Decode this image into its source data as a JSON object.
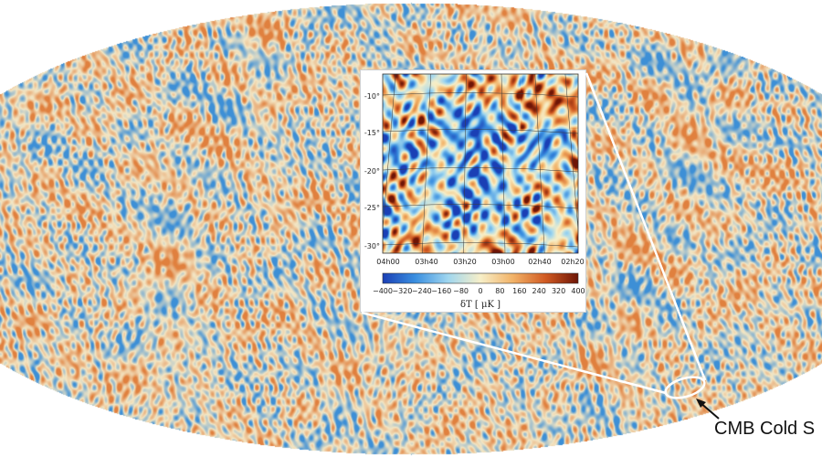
{
  "inset": {
    "y_ticks": [
      "-10°",
      "-15°",
      "-20°",
      "-25°",
      "-30°"
    ],
    "x_ticks": [
      "04h00",
      "03h40",
      "03h20",
      "03h00",
      "02h40",
      "02h20"
    ],
    "colorbar": {
      "tick_labels": [
        "−400",
        "−320",
        "−240",
        "−160",
        "−80",
        "0",
        "80",
        "160",
        "240",
        "320",
        "400"
      ],
      "label": "δT [ μK ]",
      "min": -400,
      "max": 400,
      "colors": [
        "#1a3fb5",
        "#3a8fe0",
        "#9fd6ef",
        "#f7efc8",
        "#f2b267",
        "#d15a22",
        "#6e1506"
      ]
    }
  },
  "annotation": {
    "label": "CMB Cold S"
  },
  "colors": {
    "map_cold": "#3d8fd6",
    "map_mid": "#f3e6c4",
    "map_warm": "#e0803e",
    "line": "#ffffff"
  }
}
